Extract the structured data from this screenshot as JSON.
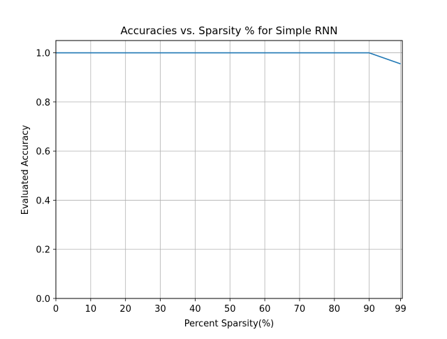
{
  "chart_data": {
    "type": "line",
    "title": "Accuracies vs. Sparsity % for Simple RNN",
    "xlabel": "Percent Sparsity(%)",
    "ylabel": "Evaluated Accuracy",
    "x_ticks": [
      "0",
      "10",
      "20",
      "30",
      "40",
      "50",
      "60",
      "70",
      "80",
      "90",
      "99"
    ],
    "y_ticks": [
      "0.0",
      "0.2",
      "0.4",
      "0.6",
      "0.8",
      "1.0"
    ],
    "xlim": [
      0,
      99.5
    ],
    "ylim": [
      0,
      1.05
    ],
    "grid": true,
    "series": [
      {
        "color": "#1f77b4",
        "x": [
          0,
          10,
          20,
          30,
          40,
          50,
          60,
          70,
          80,
          90,
          99
        ],
        "y": [
          1.0,
          1.0,
          1.0,
          1.0,
          1.0,
          1.0,
          1.0,
          1.0,
          1.0,
          1.0,
          0.955
        ]
      }
    ]
  }
}
